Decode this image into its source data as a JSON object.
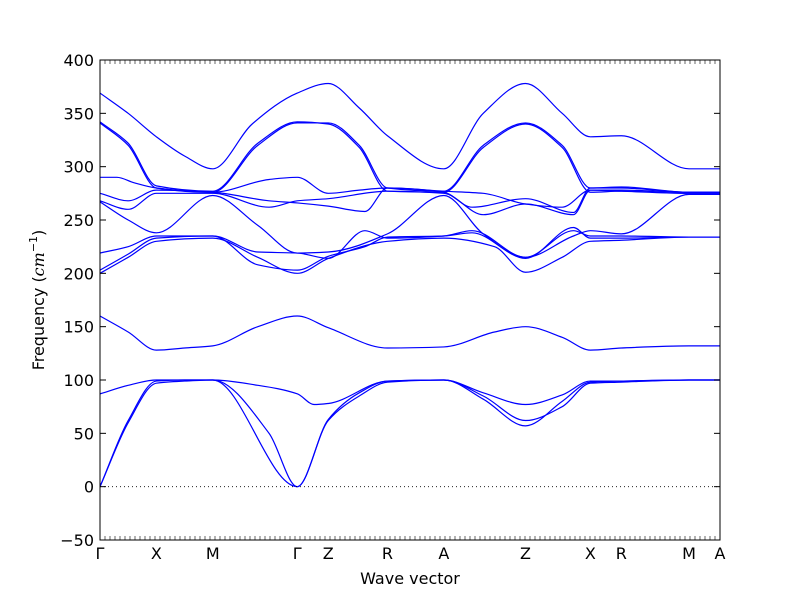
{
  "chart_data": {
    "type": "line",
    "title": "",
    "xlabel": "Wave vector",
    "ylabel_prefix": "Frequency (",
    "ylabel_unit_base": "cm",
    "ylabel_unit_exp": "−1",
    "ylabel_suffix": ")",
    "ylim": [
      -50,
      400
    ],
    "yticks": [
      -50,
      0,
      50,
      100,
      150,
      200,
      250,
      300,
      350,
      400
    ],
    "ytick_labels": [
      "−50",
      "0",
      "50",
      "100",
      "150",
      "200",
      "250",
      "300",
      "350",
      "400"
    ],
    "zero_line": true,
    "grid": false,
    "line_color": "#0000ff",
    "zero_line_color": "#000000",
    "xlim": [
      0,
      11
    ],
    "high_symmetry_points": [
      {
        "label": "Γ",
        "x": 0
      },
      {
        "label": "X",
        "x": 1
      },
      {
        "label": "M",
        "x": 2
      },
      {
        "label": "Γ",
        "x": 3.5
      },
      {
        "label": "Z",
        "x": 4.05
      },
      {
        "label": "R",
        "x": 5.1
      },
      {
        "label": "A",
        "x": 6.1
      },
      {
        "label": "Z",
        "x": 7.55
      },
      {
        "label": "X",
        "x": 8.7
      },
      {
        "label": "R",
        "x": 9.25
      },
      {
        "label": "M",
        "x": 10.45
      },
      {
        "label": "A",
        "x": 11
      }
    ],
    "series": [
      {
        "x": [
          0,
          0.5,
          1,
          1.5,
          2,
          3.5,
          4.05,
          4.6,
          5.1,
          6.1,
          6.8,
          7.55,
          8.2,
          8.7,
          9.25,
          10.45,
          11
        ],
        "values": [
          0,
          60,
          97,
          99,
          100,
          0,
          62,
          85,
          98,
          100,
          85,
          62,
          75,
          97,
          98,
          100,
          100
        ]
      },
      {
        "x": [
          0,
          0.5,
          1,
          1.5,
          2,
          3.0,
          3.5,
          4.05,
          4.6,
          5.1,
          6.1,
          6.8,
          7.55,
          8.2,
          8.7,
          9.25,
          10.45,
          11
        ],
        "values": [
          0,
          62,
          99,
          100,
          100,
          50,
          0,
          63,
          88,
          99,
          100,
          82,
          57,
          80,
          98,
          99,
          100,
          100
        ]
      },
      {
        "x": [
          0,
          0.5,
          1,
          1.5,
          2,
          2.8,
          3.5,
          3.8,
          4.05,
          5.1,
          6.1,
          6.8,
          7.55,
          8.2,
          8.7,
          9.25,
          10.45,
          11
        ],
        "values": [
          87,
          95,
          100,
          100,
          100,
          95,
          87,
          77,
          78,
          99,
          100,
          88,
          77,
          86,
          99,
          99,
          100,
          100
        ]
      },
      {
        "x": [
          0,
          0.5,
          1,
          1.5,
          2,
          2.8,
          3.5,
          4.05,
          5.1,
          6.1,
          7.0,
          7.55,
          8.2,
          8.7,
          9.25,
          10.45,
          11
        ],
        "values": [
          160,
          145,
          128,
          130,
          132,
          150,
          160,
          149,
          130,
          131,
          145,
          150,
          140,
          128,
          130,
          132,
          132
        ]
      },
      {
        "x": [
          0,
          0.5,
          1,
          2,
          2.8,
          3.5,
          4.05,
          5.1,
          6.1,
          7.0,
          7.55,
          8.2,
          8.7,
          9.25,
          10.45,
          11
        ],
        "values": [
          200,
          215,
          230,
          233,
          215,
          200,
          214,
          230,
          233,
          225,
          201,
          215,
          230,
          231,
          234,
          234
        ]
      },
      {
        "x": [
          0,
          0.5,
          1,
          2,
          2.8,
          3.5,
          4.05,
          4.7,
          5.1,
          6.1,
          6.6,
          7.55,
          8.4,
          8.7,
          9.25,
          10.45,
          11
        ],
        "values": [
          203,
          218,
          233,
          235,
          208,
          203,
          216,
          225,
          234,
          235,
          238,
          214,
          243,
          233,
          233,
          234,
          234
        ]
      },
      {
        "x": [
          0,
          0.5,
          1,
          2,
          2.8,
          3.5,
          4.05,
          4.7,
          5.1,
          6.1,
          6.6,
          7.55,
          8.4,
          8.7,
          9.25,
          10.45,
          11
        ],
        "values": [
          219,
          225,
          235,
          235,
          220,
          219,
          214,
          240,
          233,
          235,
          240,
          215,
          240,
          235,
          235,
          234,
          234
        ]
      },
      {
        "x": [
          0,
          0.5,
          1,
          2,
          2.8,
          3.5,
          4.05,
          5.1,
          6.1,
          6.8,
          7.55,
          8.4,
          8.7,
          9.25,
          10.45,
          11
        ],
        "values": [
          267,
          250,
          238,
          273,
          245,
          219,
          220,
          237,
          273,
          237,
          215,
          235,
          240,
          237,
          274,
          274
        ]
      },
      {
        "x": [
          0,
          0.5,
          1,
          2,
          3.0,
          3.5,
          4.05,
          5.1,
          6.1,
          6.8,
          7.55,
          8.4,
          8.7,
          9.25,
          10.45,
          11
        ],
        "values": [
          268,
          260,
          275,
          275,
          262,
          268,
          270,
          277,
          275,
          255,
          265,
          255,
          278,
          277,
          275,
          275
        ]
      },
      {
        "x": [
          0,
          0.5,
          1,
          2,
          3.0,
          3.5,
          4.05,
          4.7,
          5.1,
          6.1,
          6.6,
          7.55,
          8.4,
          8.7,
          9.25,
          10.45,
          11
        ],
        "values": [
          275,
          268,
          278,
          276,
          268,
          266,
          263,
          258,
          280,
          276,
          262,
          270,
          257,
          280,
          280,
          276,
          276
        ]
      },
      {
        "x": [
          0,
          0.3,
          0.6,
          1,
          2,
          3.0,
          3.5,
          4.05,
          4.6,
          5.1,
          6.1,
          6.8,
          7.55,
          8.2,
          8.7,
          9.25,
          10.45,
          11
        ],
        "values": [
          290,
          290,
          285,
          280,
          276,
          288,
          290,
          275,
          278,
          280,
          277,
          275,
          265,
          262,
          278,
          278,
          276,
          276
        ]
      },
      {
        "x": [
          0,
          0.5,
          1,
          2,
          2.8,
          3.5,
          4.05,
          4.6,
          5.1,
          6.1,
          6.8,
          7.55,
          8.2,
          8.7,
          9.25,
          10.45,
          11
        ],
        "values": [
          341,
          320,
          280,
          276,
          320,
          341,
          341,
          320,
          280,
          277,
          320,
          341,
          320,
          280,
          281,
          276,
          276
        ]
      },
      {
        "x": [
          0,
          0.5,
          1,
          2,
          2.8,
          3.5,
          4.05,
          4.6,
          5.1,
          6.1,
          6.8,
          7.55,
          8.2,
          8.7,
          9.25,
          10.45,
          11
        ],
        "values": [
          342,
          322,
          282,
          277,
          322,
          342,
          340,
          318,
          277,
          276,
          318,
          340,
          318,
          276,
          277,
          275,
          275
        ]
      },
      {
        "x": [
          0,
          0.5,
          1,
          1.5,
          2,
          2.7,
          3.5,
          4.05,
          4.6,
          5.1,
          6.1,
          6.8,
          7.55,
          8.2,
          8.7,
          9.25,
          10.45,
          11
        ],
        "values": [
          369,
          350,
          328,
          310,
          298,
          340,
          369,
          378,
          355,
          329,
          298,
          350,
          378,
          350,
          328,
          329,
          298,
          298
        ]
      }
    ]
  }
}
